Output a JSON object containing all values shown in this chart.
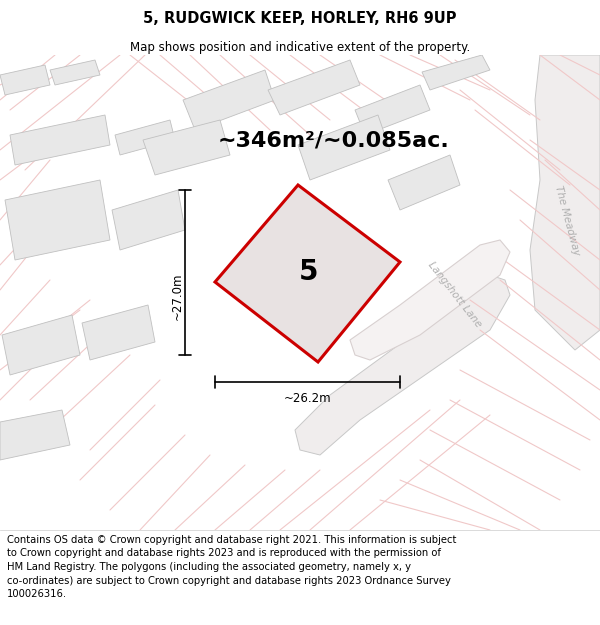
{
  "title": "5, RUDGWICK KEEP, HORLEY, RH6 9UP",
  "subtitle": "Map shows position and indicative extent of the property.",
  "area_text": "~346m²/~0.085ac.",
  "width_label": "~26.2m",
  "height_label": "~27.0m",
  "property_number": "5",
  "footer_text": "Contains OS data © Crown copyright and database right 2021. This information is subject\nto Crown copyright and database rights 2023 and is reproduced with the permission of\nHM Land Registry. The polygons (including the associated geometry, namely x, y\nco-ordinates) are subject to Crown copyright and database rights 2023 Ordnance Survey\n100026316.",
  "bg_white": "#ffffff",
  "map_bg": "#ffffff",
  "road_line_color": "#f0c8c8",
  "road_fill_color": "#f5f0f0",
  "road_label_color": "#b0b0b0",
  "road_border_color": "#c8c8c8",
  "building_fill": "#e8e8e8",
  "building_edge": "#c0c0c0",
  "property_fill": "#e8e2e2",
  "property_edge": "#cc0000",
  "property_lw": 2.2,
  "dim_line_color": "#000000",
  "title_fontsize": 10.5,
  "subtitle_fontsize": 8.5,
  "area_fontsize": 16,
  "label_fontsize": 8.5,
  "number_fontsize": 20,
  "footer_fontsize": 7.2,
  "road_label_fontsize": 7.5
}
